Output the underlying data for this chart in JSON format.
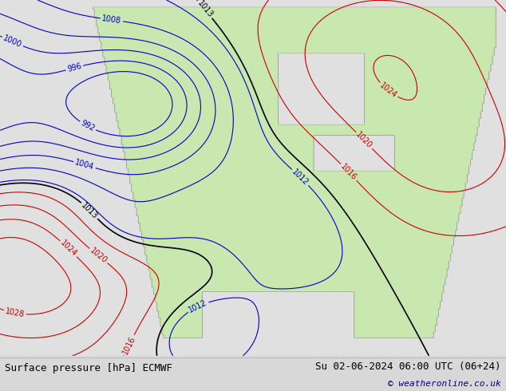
{
  "title_left": "Surface pressure [hPa] ECMWF",
  "title_right": "Su 02-06-2024 06:00 UTC (06+24)",
  "copyright": "© weatheronline.co.uk",
  "bg_color": "#d8d8d8",
  "land_color": "#c8e8b0",
  "ocean_color": "#e8e8e8",
  "fig_width": 6.34,
  "fig_height": 4.9,
  "dpi": 100,
  "bottom_bar_color": "#e0e0e0",
  "title_fontsize": 9,
  "copyright_fontsize": 8,
  "copyright_color": "#000080",
  "isobar_blue_color": "#0000cc",
  "isobar_red_color": "#cc0000",
  "isobar_black_color": "#000000",
  "blue_levels": [
    992,
    996,
    1000,
    1004,
    1008,
    1012
  ],
  "red_levels": [
    1016,
    1020,
    1024,
    1028
  ],
  "black_levels": [
    1013
  ],
  "label_fontsize": 7
}
